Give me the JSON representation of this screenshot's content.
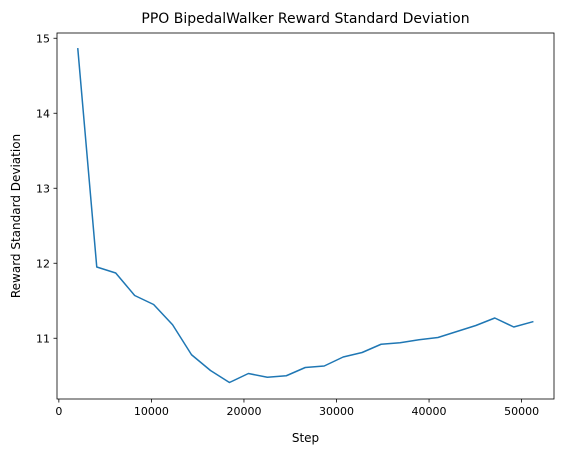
{
  "chart_data": {
    "type": "line",
    "title": "PPO BipedalWalker Reward Standard Deviation",
    "xlabel": "Step",
    "ylabel": "Reward Standard Deviation",
    "xlim": [
      -200,
      53500
    ],
    "ylim": [
      10.19,
      15.07
    ],
    "xticks": [
      0,
      10000,
      20000,
      30000,
      40000,
      50000
    ],
    "xtick_labels": [
      "0",
      "10000",
      "20000",
      "30000",
      "40000",
      "50000"
    ],
    "yticks": [
      11,
      12,
      13,
      14,
      15
    ],
    "ytick_labels": [
      "11",
      "12",
      "13",
      "14",
      "15"
    ],
    "grid": false,
    "legend": "none",
    "line_color": "#1f77b4",
    "series": [
      {
        "x": [
          2048,
          4096,
          6144,
          8192,
          10240,
          12288,
          14336,
          16384,
          18432,
          20480,
          22528,
          24576,
          26624,
          28672,
          30720,
          32768,
          34816,
          36864,
          38912,
          40960,
          43008,
          45056,
          47104,
          49152,
          51200
        ],
        "values": [
          14.86,
          11.95,
          11.87,
          11.57,
          11.45,
          11.18,
          10.78,
          10.57,
          10.41,
          10.53,
          10.48,
          10.5,
          10.61,
          10.63,
          10.75,
          10.81,
          10.92,
          10.94,
          10.98,
          11.01,
          11.09,
          11.17,
          11.27,
          11.15,
          11.22
        ]
      }
    ]
  }
}
